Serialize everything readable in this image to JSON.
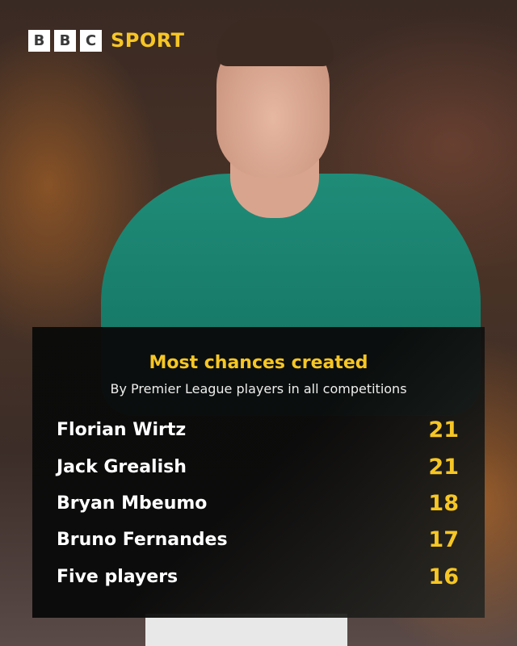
{
  "brand": {
    "letters": [
      "B",
      "B",
      "C"
    ],
    "sport": "SPORT",
    "accent": "#f6c625"
  },
  "panel": {
    "title": "Most chances created",
    "subtitle": "By Premier League players in all competitions",
    "rows": [
      {
        "name": "Florian Wirtz",
        "value": "21"
      },
      {
        "name": "Jack Grealish",
        "value": "21"
      },
      {
        "name": "Bryan Mbeumo",
        "value": "18"
      },
      {
        "name": "Bruno Fernandes",
        "value": "17"
      },
      {
        "name": "Five players",
        "value": "16"
      }
    ]
  }
}
